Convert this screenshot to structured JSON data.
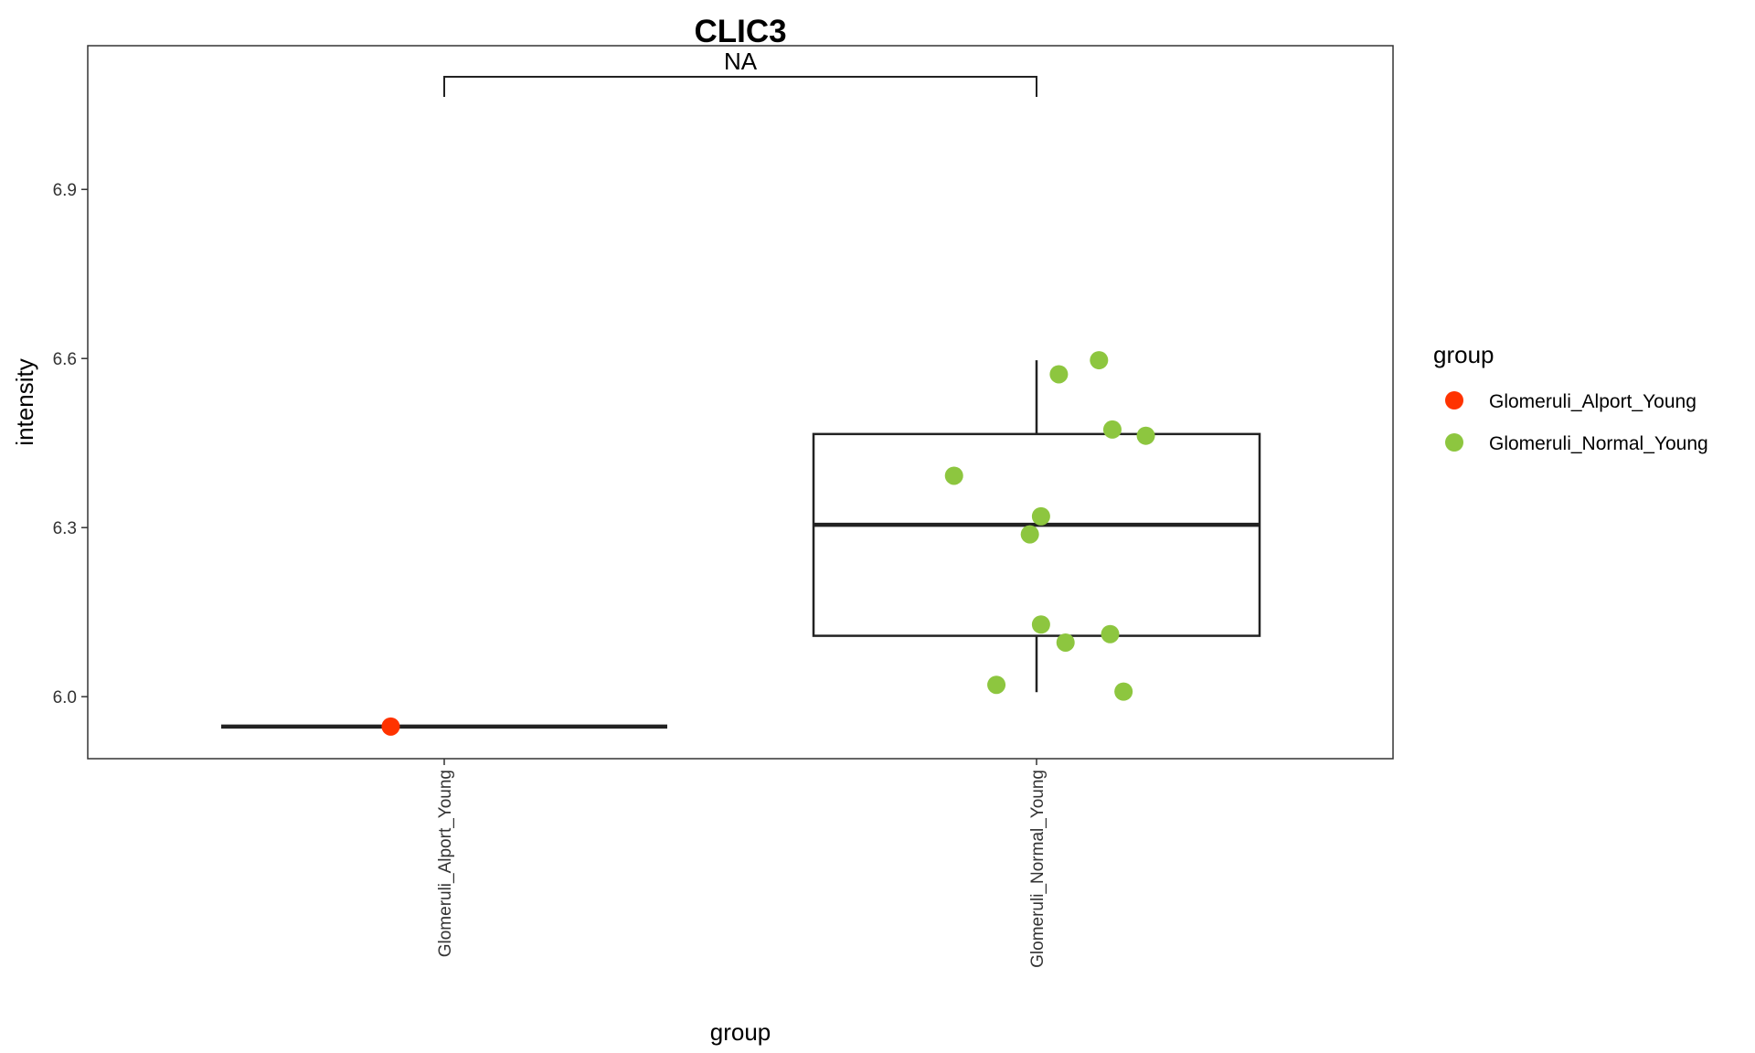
{
  "chart_data": {
    "type": "boxplot",
    "title": "CLIC3",
    "xlabel": "group",
    "ylabel": "intensity",
    "ylim": [
      5.89,
      7.155
    ],
    "y_ticks": [
      "6.0",
      "6.3",
      "6.6",
      "6.9"
    ],
    "grid": false,
    "categories": [
      "Glomeruli_Alport_Young",
      "Glomeruli_Normal_Young"
    ],
    "series": [
      {
        "name": "Glomeruli_Alport_Young",
        "color": "#FF3300",
        "box": {
          "min": 5.947,
          "q1": 5.947,
          "median": 5.947,
          "q3": 5.947,
          "max": 5.947
        },
        "points": [
          {
            "x": -0.24,
            "y": 5.947
          }
        ]
      },
      {
        "name": "Glomeruli_Normal_Young",
        "color": "#8DC63F",
        "box": {
          "min": 6.008,
          "q1": 6.108,
          "median": 6.305,
          "q3": 6.466,
          "max": 6.597
        },
        "points": [
          {
            "x": 0.1,
            "y": 6.572
          },
          {
            "x": 0.28,
            "y": 6.597
          },
          {
            "x": 0.34,
            "y": 6.474
          },
          {
            "x": 0.49,
            "y": 6.463
          },
          {
            "x": -0.37,
            "y": 6.392
          },
          {
            "x": 0.02,
            "y": 6.32
          },
          {
            "x": -0.03,
            "y": 6.288
          },
          {
            "x": 0.02,
            "y": 6.128
          },
          {
            "x": 0.13,
            "y": 6.096
          },
          {
            "x": 0.33,
            "y": 6.111
          },
          {
            "x": -0.18,
            "y": 6.021
          },
          {
            "x": 0.39,
            "y": 6.009
          }
        ]
      }
    ],
    "comparison": {
      "from": "Glomeruli_Alport_Young",
      "to": "Glomeruli_Normal_Young",
      "label": "NA"
    },
    "legend": {
      "title": "group",
      "placement": "right"
    }
  }
}
